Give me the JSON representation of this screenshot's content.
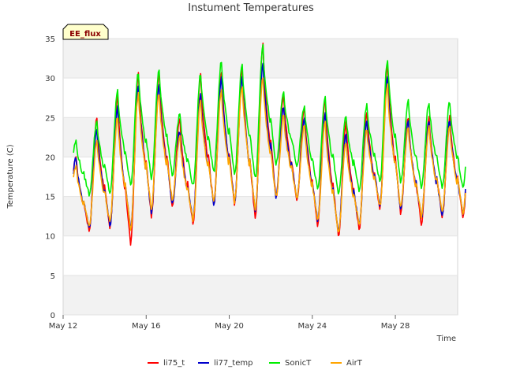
{
  "chart_data": {
    "type": "line",
    "title": "Instument Temperatures",
    "xlabel": "Time",
    "ylabel": "Temperature (C)",
    "annotation": "EE_flux",
    "ylim": [
      0,
      35
    ],
    "yticks": [
      0,
      5,
      10,
      15,
      20,
      25,
      30,
      35
    ],
    "xlim": [
      "2018-05-12",
      "2018-05-31"
    ],
    "xticks": [
      {
        "date": "2018-05-12",
        "label": "May 12"
      },
      {
        "date": "2018-05-16",
        "label": "May 16"
      },
      {
        "date": "2018-05-20",
        "label": "May 20"
      },
      {
        "date": "2018-05-24",
        "label": "May 24"
      },
      {
        "date": "2018-05-28",
        "label": "May 28"
      }
    ],
    "grid": true,
    "legend_position": "bottom",
    "series": [
      {
        "name": "li75_t",
        "color": "#ff0000",
        "daily_min": [
          11.8,
          10.7,
          11.0,
          9.0,
          12.5,
          13.8,
          11.5,
          13.9,
          14.1,
          12.3,
          14.8,
          14.5,
          11.5,
          10.0,
          10.8,
          13.5,
          13.0,
          11.5,
          12.5
        ],
        "daily_max": [
          20.1,
          25.0,
          27.8,
          30.5,
          30.8,
          24.8,
          30.3,
          30.8,
          31.3,
          34.3,
          27.8,
          26.3,
          27.5,
          24.3,
          25.8,
          31.7,
          25.0
        ]
      },
      {
        "name": "li77_temp",
        "color": "#0000cc",
        "daily_min": [
          12.3,
          11.0,
          11.3,
          10.8,
          13.0,
          14.0,
          12.0,
          14.0,
          14.3,
          13.0,
          15.0,
          14.8,
          12.0,
          10.5,
          11.3,
          13.8,
          13.3,
          12.3,
          12.7
        ],
        "daily_max": [
          20.0,
          23.5,
          26.3,
          29.0,
          29.0,
          23.3,
          28.0,
          30.0,
          30.0,
          32.0,
          26.3,
          25.0,
          25.5,
          22.8,
          24.5,
          30.0,
          24.5
        ]
      },
      {
        "name": "SonicT",
        "color": "#00ee00",
        "daily_min": [
          16.5,
          15.3,
          15.4,
          16.3,
          17.3,
          17.8,
          16.3,
          18.0,
          17.8,
          17.3,
          19.0,
          18.8,
          16.0,
          15.3,
          15.8,
          16.8,
          16.8,
          16.0,
          16.0
        ],
        "daily_max": [
          22.0,
          24.5,
          28.3,
          30.7,
          31.0,
          25.5,
          30.5,
          32.2,
          31.7,
          34.0,
          28.3,
          26.5,
          27.8,
          25.2,
          26.5,
          32.3,
          27.0
        ]
      },
      {
        "name": "AirT",
        "color": "#ffa500",
        "daily_min": [
          12.5,
          11.3,
          11.8,
          11.0,
          13.5,
          14.5,
          12.0,
          14.3,
          14.3,
          13.5,
          15.0,
          14.8,
          12.0,
          10.5,
          11.5,
          13.8,
          13.5,
          12.5,
          13.0
        ],
        "daily_max": [
          19.0,
          22.0,
          25.2,
          28.0,
          28.0,
          22.5,
          27.0,
          28.5,
          29.0,
          30.0,
          25.3,
          24.0,
          24.3,
          22.0,
          23.5,
          29.0,
          23.8
        ]
      }
    ]
  }
}
